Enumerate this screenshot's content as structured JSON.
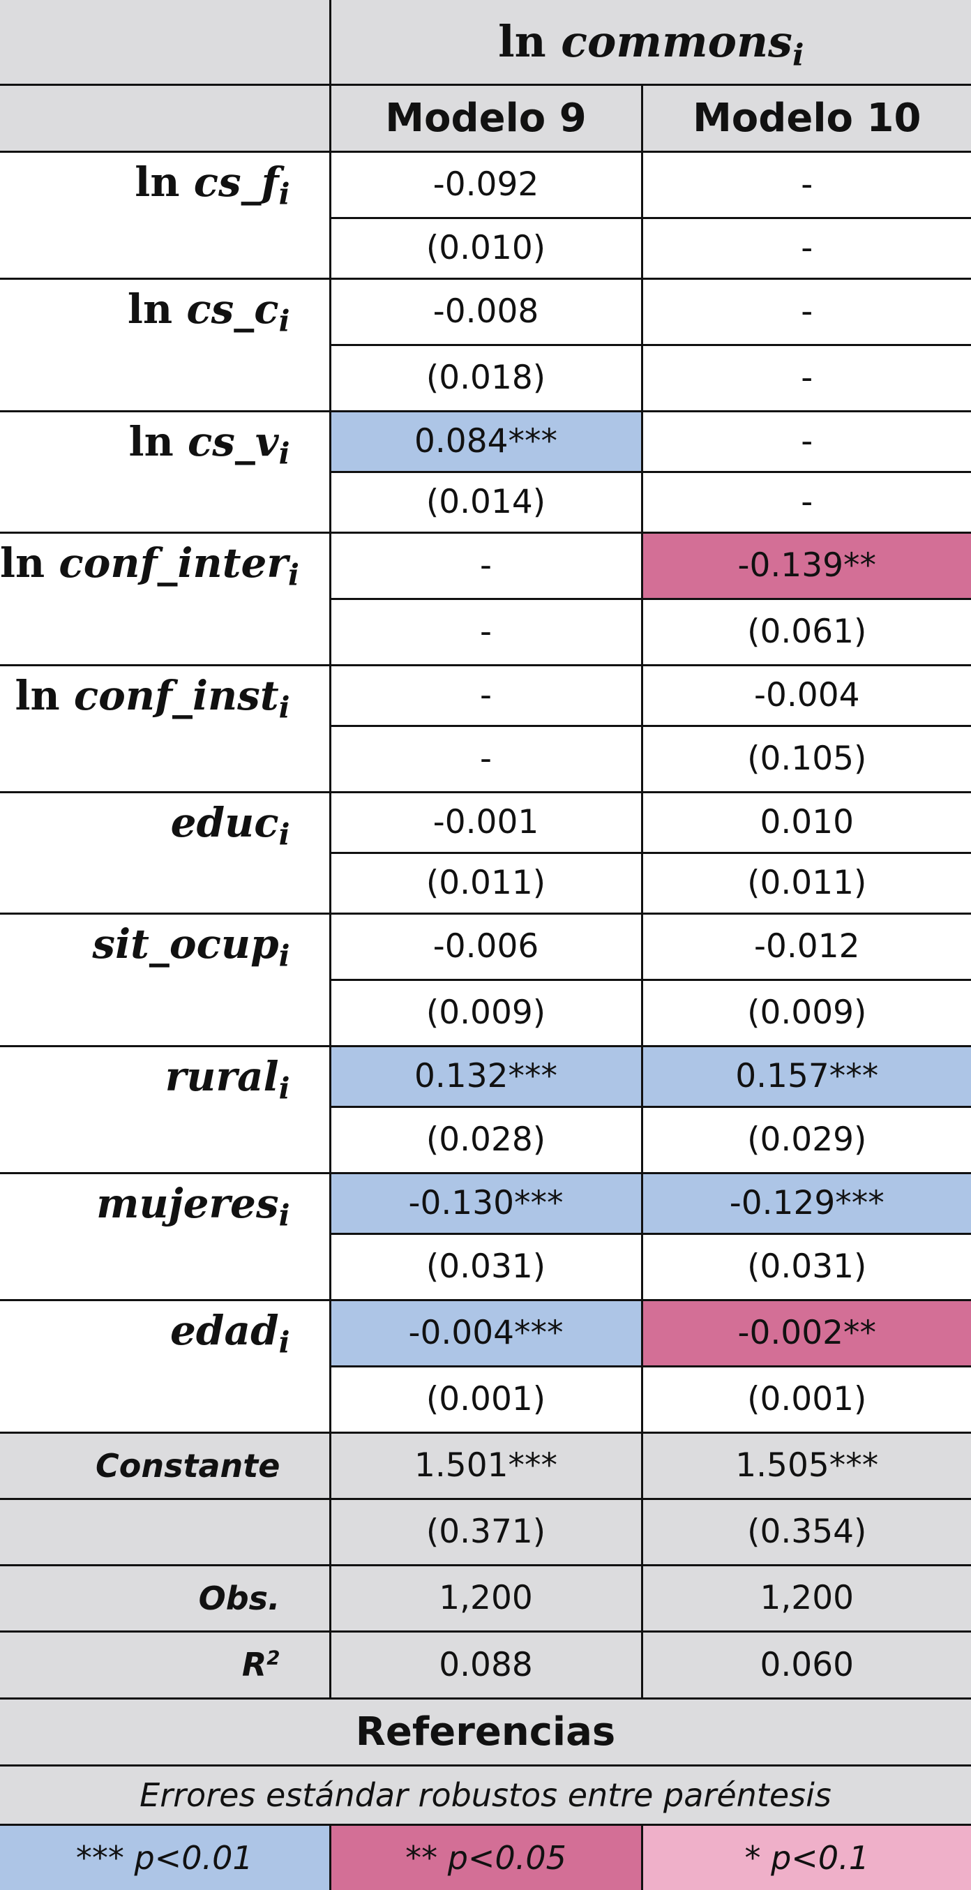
{
  "header": {
    "dep_ln": "ln",
    "dep_var": "commons",
    "dep_sub": "i",
    "models": [
      "Modelo 9",
      "Modelo 10"
    ]
  },
  "rows": [
    {
      "ln": "ln",
      "var": "cs_f",
      "sub": "i",
      "coef": [
        "-0.092",
        "-"
      ],
      "se": [
        "(0.010)",
        "-"
      ]
    },
    {
      "ln": "ln",
      "var": "cs_c",
      "sub": "i",
      "coef": [
        "-0.008",
        "-"
      ],
      "se": [
        "(0.018)",
        "-"
      ]
    },
    {
      "ln": "ln",
      "var": "cs_v",
      "sub": "i",
      "coef": [
        "0.084***",
        "-"
      ],
      "se": [
        "(0.014)",
        "-"
      ]
    },
    {
      "ln": "ln",
      "var": "conf_inter",
      "sub": "i",
      "coef": [
        "-",
        "-0.139**"
      ],
      "se": [
        "-",
        "(0.061)"
      ]
    },
    {
      "ln": "ln",
      "var": "conf_inst",
      "sub": "i",
      "coef": [
        "-",
        "-0.004"
      ],
      "se": [
        "-",
        "(0.105)"
      ]
    },
    {
      "ln": "",
      "var": "educ",
      "sub": "i",
      "coef": [
        "-0.001",
        "0.010"
      ],
      "se": [
        "(0.011)",
        "(0.011)"
      ]
    },
    {
      "ln": "",
      "var": "sit_ocup",
      "sub": "i",
      "coef": [
        "-0.006",
        "-0.012"
      ],
      "se": [
        "(0.009)",
        "(0.009)"
      ]
    },
    {
      "ln": "",
      "var": "rural",
      "sub": "i",
      "coef": [
        "0.132***",
        "0.157***"
      ],
      "se": [
        "(0.028)",
        "(0.029)"
      ]
    },
    {
      "ln": "",
      "var": "mujeres",
      "sub": "i",
      "coef": [
        "-0.130***",
        "-0.129***"
      ],
      "se": [
        "(0.031)",
        "(0.031)"
      ]
    },
    {
      "ln": "",
      "var": "edad",
      "sub": "i",
      "coef": [
        "-0.004***",
        "-0.002**"
      ],
      "se": [
        "(0.001)",
        "(0.001)"
      ]
    }
  ],
  "constant": {
    "label": "Constante",
    "coef": [
      "1.501***",
      "1.505***"
    ],
    "se": [
      "(0.371)",
      "(0.354)"
    ]
  },
  "obs": {
    "label": "Obs.",
    "values": [
      "1,200",
      "1,200"
    ]
  },
  "r2": {
    "label": "R",
    "sup": "2",
    "values": [
      "0.088",
      "0.060"
    ]
  },
  "references": {
    "title": "Referencias",
    "note": "Errores estándar robustos entre paréntesis",
    "legend": [
      "*** p<0.01",
      "** p<0.05",
      "* p<0.1"
    ]
  },
  "colors": {
    "header_bg": "#dcdcde",
    "sig_001": "#adc5e6",
    "sig_005": "#d36f96",
    "sig_01": "#efb0c9"
  }
}
